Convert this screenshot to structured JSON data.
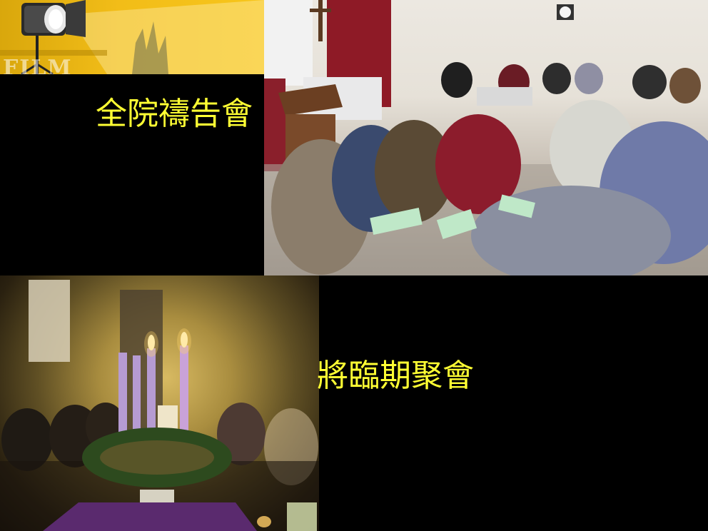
{
  "slide": {
    "background": "#000000",
    "title_color": "#ffff33",
    "sections": [
      {
        "title": "全院禱告會"
      },
      {
        "title": "將臨期聚會"
      }
    ]
  },
  "banner": {
    "text": "FILM",
    "accent": "#f2bd18"
  }
}
